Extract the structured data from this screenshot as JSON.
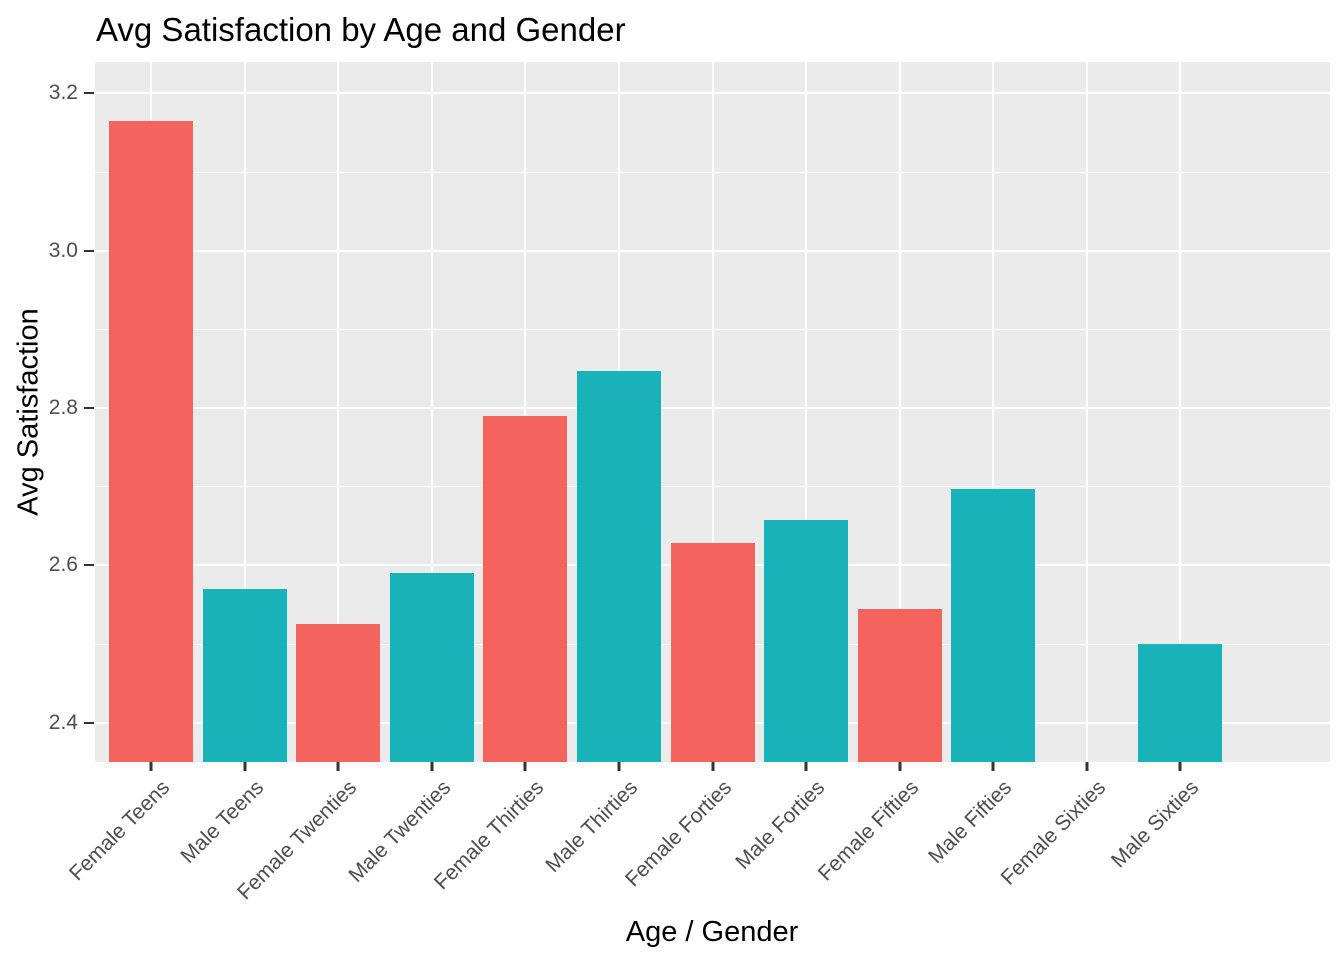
{
  "chart_data": {
    "type": "bar",
    "title": "Avg Satisfaction by Age and Gender",
    "xlabel": "Age / Gender",
    "ylabel": "Avg Satisfaction",
    "categories": [
      "Female Teens",
      "Male Teens",
      "Female Twenties",
      "Male Twenties",
      "Female Thirties",
      "Male Thirties",
      "Female Forties",
      "Male Forties",
      "Female Fifties",
      "Male Fifties",
      "Female Sixties",
      "Male Sixties"
    ],
    "series": [
      {
        "name": "Avg Satisfaction",
        "values": [
          3.165,
          2.57,
          2.525,
          2.59,
          2.79,
          2.847,
          2.628,
          2.658,
          2.545,
          2.697,
          null,
          2.5
        ]
      }
    ],
    "bar_groups": [
      "female",
      "male",
      "female",
      "male",
      "female",
      "male",
      "female",
      "male",
      "female",
      "male",
      "female",
      "male"
    ],
    "colors": {
      "female": "#F4635D",
      "male": "#18B3B8"
    },
    "ylim": [
      2.35,
      3.24
    ],
    "yticks": [
      2.4,
      2.6,
      2.8,
      3.0,
      3.2
    ],
    "ytick_labels": [
      "2.4",
      "2.6",
      "2.8",
      "3.0",
      "3.2"
    ],
    "yminor": [
      2.5,
      2.7,
      2.9,
      3.1
    ],
    "grid": "on",
    "legend_position": "none",
    "panel_bg": "#EBEBEB",
    "grid_color": "#FFFFFF",
    "tick_label_color": "#4D4D4D",
    "tick_mark_color": "#333333"
  }
}
